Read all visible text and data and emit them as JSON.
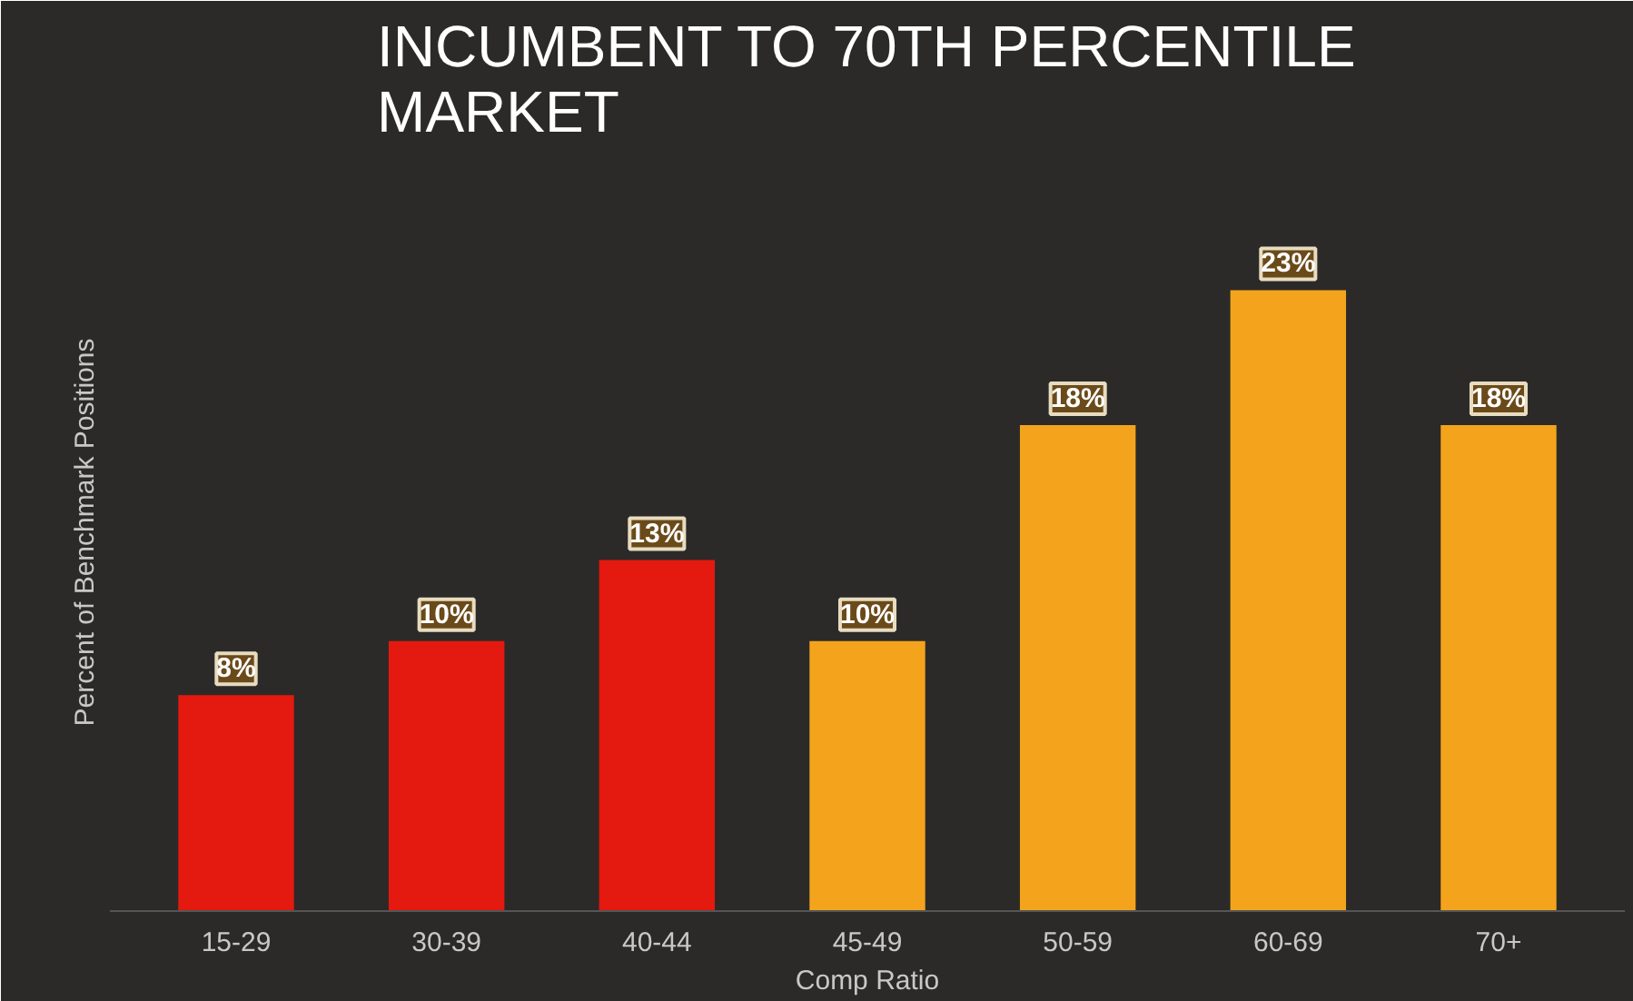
{
  "chart_data": {
    "type": "bar",
    "title": "INCUMBENT TO 70TH PERCENTILE\nMARKET",
    "xlabel": "Comp Ratio",
    "ylabel": "Percent of Benchmark Positions",
    "categories": [
      "15-29",
      "30-39",
      "40-44",
      "45-49",
      "50-59",
      "60-69",
      "70+"
    ],
    "values": [
      8,
      10,
      13,
      10,
      18,
      23,
      18
    ],
    "colors": [
      "#e4190f",
      "#e4190f",
      "#e4190f",
      "#f4a41c",
      "#f4a41c",
      "#f4a41c",
      "#f4a41c"
    ],
    "value_labels": [
      "8%",
      "10%",
      "13%",
      "10%",
      "18%",
      "23%",
      "18%"
    ]
  }
}
